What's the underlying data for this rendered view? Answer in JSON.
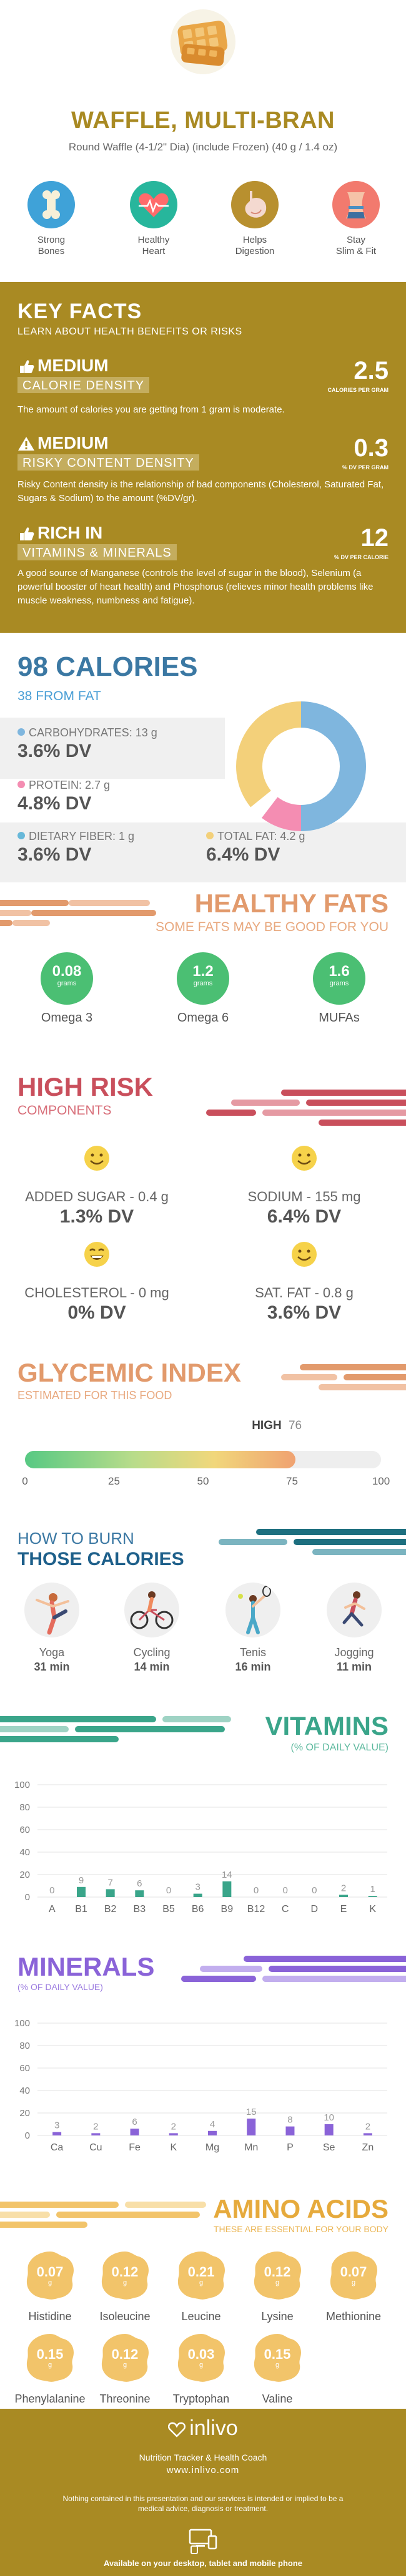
{
  "header": {
    "title": "WAFFLE, MULTI-BRAN",
    "subtitle": "Round Waffle (4-1/2\" Dia) (include Frozen) (40 g / 1.4 oz)",
    "benefits": [
      {
        "label": "Strong\nBones",
        "icon": "bone-icon",
        "color": "#3fa2d8"
      },
      {
        "label": "Healthy\nHeart",
        "icon": "heart-icon",
        "color": "#27b69c"
      },
      {
        "label": "Helps\nDigestion",
        "icon": "stomach-icon",
        "color": "#b8902f"
      },
      {
        "label": "Stay\nSlim & Fit",
        "icon": "waist-icon",
        "color": "#f27a6e"
      }
    ]
  },
  "key_facts": {
    "title": "KEY FACTS",
    "subtitle": "LEARN ABOUT HEALTH BENEFITS OR RISKS",
    "items": [
      {
        "level": "MEDIUM",
        "label": "CALORIE DENSITY",
        "value": "2.5",
        "unit": "CALORIES PER GRAM",
        "text": "The amount of calories you are getting from 1 gram is moderate."
      },
      {
        "level": "MEDIUM",
        "label": "RISKY CONTENT DENSITY",
        "value": "0.3",
        "unit": "% DV PER GRAM",
        "text": "Risky Content density is the relationship of bad components (Cholesterol, Saturated Fat, Sugars & Sodium) to the amount (%DV/gr)."
      },
      {
        "level": "RICH IN",
        "label": "VITAMINS & MINERALS",
        "value": "12",
        "unit": "% DV PER CALORIE",
        "text": "A good source of Manganese (controls the level of sugar in the blood), Selenium (a powerful booster of heart health) and Phosphorus (relieves minor health problems like muscle weakness, numbness and fatigue)."
      }
    ]
  },
  "calories": {
    "title": "98 CALORIES",
    "subtitle": "38 FROM FAT",
    "macros": [
      {
        "label": "CARBOHYDRATES: 13 g",
        "dv": "3.6% DV",
        "color": "#7fb6de"
      },
      {
        "label": "PROTEIN: 2.7 g",
        "dv": "4.8% DV",
        "color": "#f48db2"
      },
      {
        "label": "DIETARY FIBER: 1 g",
        "dv": "3.6% DV",
        "color": "#67b8d9"
      },
      {
        "label": "TOTAL FAT: 4.2 g",
        "dv": "6.4% DV",
        "color": "#f3d07a"
      }
    ],
    "donut": [
      {
        "name": "Carbohydrates",
        "value": 53,
        "color": "#7fb6de"
      },
      {
        "name": "Protein",
        "value": 11,
        "color": "#f48db2"
      },
      {
        "name": "Dietary fiber",
        "value": 4,
        "color": "#ffffff"
      },
      {
        "name": "Fat",
        "value": 38,
        "color": "#f3d07a"
      }
    ]
  },
  "healthy_fats": {
    "title": "HEALTHY FATS",
    "subtitle": "SOME FATS MAY BE GOOD FOR YOU",
    "items": [
      {
        "name": "Omega 3",
        "value": "0.08",
        "unit": "grams"
      },
      {
        "name": "Omega 6",
        "value": "1.2",
        "unit": "grams"
      },
      {
        "name": "MUFAs",
        "value": "1.6",
        "unit": "grams"
      }
    ]
  },
  "high_risk": {
    "title": "HIGH RISK",
    "subtitle": "COMPONENTS",
    "items": [
      {
        "label": "ADDED SUGAR - 0.4 g",
        "dv": "1.3% DV"
      },
      {
        "label": "SODIUM - 155 mg",
        "dv": "6.4% DV"
      },
      {
        "label": "CHOLESTEROL - 0 mg",
        "dv": "0% DV"
      },
      {
        "label": "SAT. FAT - 0.8 g",
        "dv": "3.6% DV"
      }
    ]
  },
  "glycemic": {
    "title": "GLYCEMIC INDEX",
    "subtitle": "ESTIMATED FOR THIS FOOD",
    "level": "HIGH",
    "value": 76,
    "value_text": "76",
    "ticks": [
      "0",
      "25",
      "50",
      "75",
      "100"
    ]
  },
  "burn": {
    "title_line1": "HOW TO BURN",
    "title_line2": "THOSE CALORIES",
    "activities": [
      {
        "name": "Yoga",
        "time": "31 min",
        "icon": "yoga-icon"
      },
      {
        "name": "Cycling",
        "time": "14 min",
        "icon": "cycling-icon"
      },
      {
        "name": "Tenis",
        "time": "16 min",
        "icon": "tennis-icon"
      },
      {
        "name": "Jogging",
        "time": "11 min",
        "icon": "jogging-icon"
      }
    ]
  },
  "vitamins": {
    "title": "VITAMINS",
    "subtitle": "(% OF DAILY VALUE)",
    "chart_data": {
      "type": "bar",
      "categories": [
        "A",
        "B1",
        "B2",
        "B3",
        "B5",
        "B6",
        "B9",
        "B12",
        "C",
        "D",
        "E",
        "K"
      ],
      "values": [
        0,
        9,
        7,
        6,
        0,
        3,
        14,
        0,
        0,
        0,
        2,
        1
      ],
      "labels": [
        "0",
        "9",
        "7",
        "6",
        "0",
        "3",
        "14",
        "0",
        "0",
        "0",
        "2",
        "1"
      ],
      "yticks": [
        "0",
        "20",
        "40",
        "60",
        "80",
        "100"
      ],
      "ylim": [
        0,
        100
      ],
      "color": "#3aa58a"
    }
  },
  "minerals": {
    "title": "MINERALS",
    "subtitle": "(% OF DAILY VALUE)",
    "chart_data": {
      "type": "bar",
      "categories": [
        "Ca",
        "Cu",
        "Fe",
        "K",
        "Mg",
        "Mn",
        "P",
        "Se",
        "Zn"
      ],
      "values": [
        3,
        2,
        6,
        2,
        4,
        15,
        8,
        10,
        2
      ],
      "labels": [
        "3",
        "2",
        "6",
        "2",
        "4",
        "15",
        "8",
        "10",
        "2"
      ],
      "yticks": [
        "0",
        "20",
        "40",
        "60",
        "80",
        "100"
      ],
      "ylim": [
        0,
        100
      ],
      "color": "#8a63d8"
    }
  },
  "amino": {
    "title": "AMINO ACIDS",
    "subtitle": "THESE ARE ESSENTIAL FOR YOUR BODY",
    "items": [
      {
        "name": "Histidine",
        "value": "0.07",
        "unit": "g"
      },
      {
        "name": "Isoleucine",
        "value": "0.12",
        "unit": "g"
      },
      {
        "name": "Leucine",
        "value": "0.21",
        "unit": "g"
      },
      {
        "name": "Lysine",
        "value": "0.12",
        "unit": "g"
      },
      {
        "name": "Methionine",
        "value": "0.07",
        "unit": "g"
      },
      {
        "name": "Phenylalanine",
        "value": "0.15",
        "unit": "g"
      },
      {
        "name": "Threonine",
        "value": "0.12",
        "unit": "g"
      },
      {
        "name": "Tryptophan",
        "value": "0.03",
        "unit": "g"
      },
      {
        "name": "Valine",
        "value": "0.15",
        "unit": "g"
      }
    ]
  },
  "footer": {
    "brand": "inlivo",
    "tagline": "Nutrition Tracker & Health Coach",
    "url": "www.inlivo.com",
    "disclaimer": "Nothing contained in this presentation and our services is intended or implied to be a medical advice, diagnosis or treatment.",
    "available": "Available on your desktop, tablet and mobile phone"
  },
  "colors": {
    "gold": "#a98a23",
    "blue": "#3b78a3",
    "orange": "#e29a6c",
    "red": "#c94f5c",
    "green": "#3aa58a",
    "purple": "#8a63d8",
    "amino": "#f2c46a"
  }
}
